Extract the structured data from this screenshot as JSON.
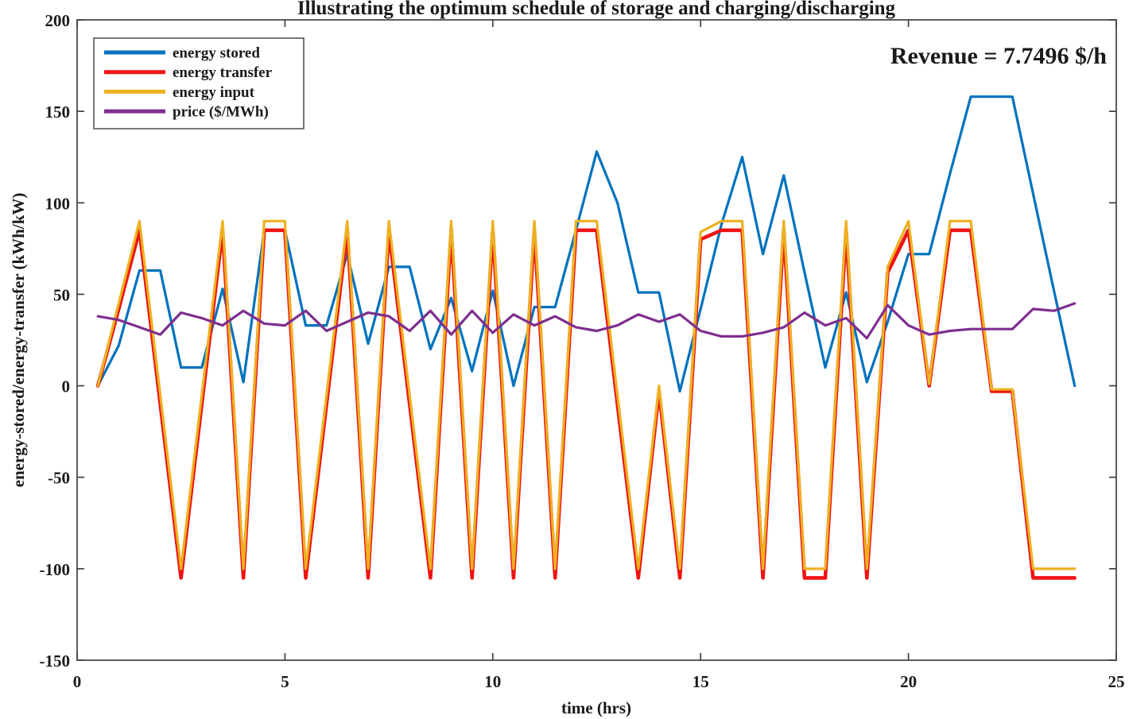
{
  "chart_data": {
    "type": "line",
    "title": "Illustrating the optimum schedule of storage and charging/discharging",
    "annotation": "Revenue = 7.7496 $/h",
    "xlabel": "time (hrs)",
    "ylabel": "energy-stored/energy-transfer (kWh/kW)",
    "xlim": [
      0,
      25
    ],
    "ylim": [
      -150,
      200
    ],
    "xticks": [
      0,
      5,
      10,
      15,
      20,
      25
    ],
    "yticks": [
      -150,
      -100,
      -50,
      0,
      50,
      100,
      150,
      200
    ],
    "grid": false,
    "legend_position": "top-left",
    "axis_color": "#404040",
    "x": [
      0.5,
      1.0,
      1.5,
      2.0,
      2.5,
      3.0,
      3.5,
      4.0,
      4.5,
      5.0,
      5.5,
      6.0,
      6.5,
      7.0,
      7.5,
      8.0,
      8.5,
      9.0,
      9.5,
      10.0,
      10.5,
      11.0,
      11.5,
      12.0,
      12.5,
      13.0,
      13.5,
      14.0,
      14.5,
      15.0,
      15.5,
      16.0,
      16.5,
      17.0,
      17.5,
      18.0,
      18.5,
      19.0,
      19.5,
      20.0,
      20.5,
      21.0,
      21.5,
      22.0,
      22.5,
      23.0,
      23.5,
      24.0
    ],
    "series": [
      {
        "name": "energy stored",
        "color": "#0072BD",
        "width": 3.2,
        "values": [
          0,
          22,
          63,
          63,
          10,
          10,
          53,
          2,
          85,
          85,
          33,
          33,
          72,
          23,
          65,
          65,
          20,
          48,
          8,
          52,
          0,
          43,
          43,
          85,
          128,
          100,
          51,
          51,
          -3,
          42,
          88,
          125,
          72,
          115,
          62,
          10,
          51,
          2,
          35,
          72,
          72,
          116,
          158,
          158,
          158,
          105,
          52,
          0
        ]
      },
      {
        "name": "energy transfer",
        "color": "#EE1414",
        "width": 4.6,
        "values": [
          0,
          42,
          85,
          -10,
          -105,
          -10,
          85,
          -105,
          85,
          85,
          -105,
          -10,
          85,
          -105,
          85,
          -10,
          -105,
          85,
          -105,
          85,
          -105,
          85,
          -105,
          85,
          85,
          -10,
          -105,
          -3,
          -105,
          80,
          85,
          85,
          -105,
          85,
          -105,
          -105,
          85,
          -105,
          62,
          85,
          0,
          85,
          85,
          -3,
          -3,
          -105,
          -105,
          -105
        ]
      },
      {
        "name": "energy input",
        "color": "#EDB120",
        "width": 3.2,
        "values": [
          0,
          45,
          90,
          -5,
          -100,
          -5,
          90,
          -100,
          90,
          90,
          -100,
          -5,
          90,
          -100,
          90,
          -5,
          -100,
          90,
          -100,
          90,
          -100,
          90,
          -100,
          90,
          90,
          -5,
          -100,
          0,
          -100,
          84,
          90,
          90,
          -100,
          90,
          -100,
          -100,
          90,
          -100,
          65,
          90,
          1,
          90,
          90,
          -2,
          -2,
          -100,
          -100,
          -100
        ]
      },
      {
        "name": "price ($/MWh)",
        "color": "#7E2F8E",
        "width": 3.2,
        "values": [
          38,
          36,
          32,
          28,
          40,
          37,
          33,
          41,
          34,
          33,
          41,
          30,
          35,
          40,
          38,
          30,
          41,
          28,
          41,
          29,
          39,
          33,
          38,
          32,
          30,
          33,
          39,
          35,
          39,
          30,
          27,
          27,
          29,
          32,
          40,
          33,
          37,
          26,
          44,
          33,
          28,
          30,
          31,
          31,
          31,
          42,
          41,
          45
        ]
      }
    ]
  }
}
